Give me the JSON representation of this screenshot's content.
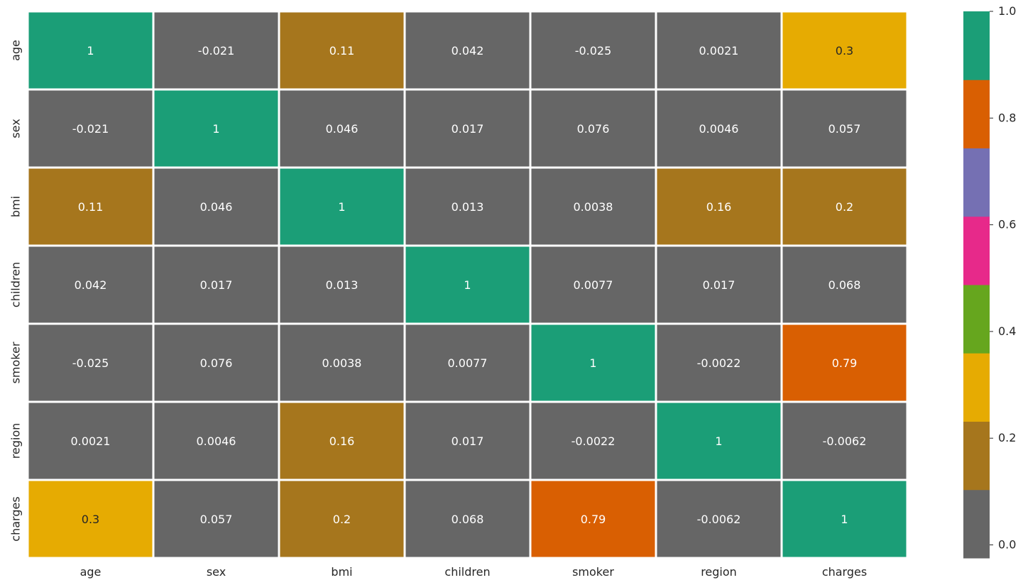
{
  "chart_data": {
    "type": "heatmap",
    "title": "",
    "xlabel": "",
    "ylabel": "",
    "x_categories": [
      "age",
      "sex",
      "bmi",
      "children",
      "smoker",
      "region",
      "charges"
    ],
    "y_categories": [
      "age",
      "sex",
      "bmi",
      "children",
      "smoker",
      "region",
      "charges"
    ],
    "values": [
      [
        1,
        -0.021,
        0.11,
        0.042,
        -0.025,
        0.0021,
        0.3
      ],
      [
        -0.021,
        1,
        0.046,
        0.017,
        0.076,
        0.0046,
        0.057
      ],
      [
        0.11,
        0.046,
        1,
        0.013,
        0.0038,
        0.16,
        0.2
      ],
      [
        0.042,
        0.017,
        0.013,
        1,
        0.0077,
        0.017,
        0.068
      ],
      [
        -0.025,
        0.076,
        0.0038,
        0.0077,
        1,
        -0.0022,
        0.79
      ],
      [
        0.0021,
        0.0046,
        0.16,
        0.017,
        -0.0022,
        1,
        -0.0062
      ],
      [
        0.3,
        0.057,
        0.2,
        0.068,
        0.79,
        -0.0062,
        1
      ]
    ],
    "labels": [
      [
        "1",
        "-0.021",
        "0.11",
        "0.042",
        "-0.025",
        "0.0021",
        "0.3"
      ],
      [
        "-0.021",
        "1",
        "0.046",
        "0.017",
        "0.076",
        "0.0046",
        "0.057"
      ],
      [
        "0.11",
        "0.046",
        "1",
        "0.013",
        "0.0038",
        "0.16",
        "0.2"
      ],
      [
        "0.042",
        "0.017",
        "0.013",
        "1",
        "0.0077",
        "0.017",
        "0.068"
      ],
      [
        "-0.025",
        "0.076",
        "0.0038",
        "0.0077",
        "1",
        "-0.0022",
        "0.79"
      ],
      [
        "0.0021",
        "0.0046",
        "0.16",
        "0.017",
        "-0.0022",
        "1",
        "-0.0062"
      ],
      [
        "0.3",
        "0.057",
        "0.2",
        "0.068",
        "0.79",
        "-0.0062",
        "1"
      ]
    ],
    "colorbar": {
      "vmin": -0.0246,
      "vmax": 1.0,
      "ticks": [
        0.0,
        0.2,
        0.4,
        0.6,
        0.8,
        1.0
      ],
      "tick_labels": [
        "0.0",
        "0.2",
        "0.4",
        "0.6",
        "0.8",
        "1.0"
      ],
      "palette": [
        "#666666",
        "#a6761d",
        "#e6ab02",
        "#66a61e",
        "#e7298a",
        "#7570b3",
        "#d95f02",
        "#1b9e77"
      ],
      "colormap": "Dark2_r",
      "position": "right"
    },
    "text_color_light": "#ffffff",
    "text_color_dark": "#262626",
    "grid_color": "#ffffff"
  }
}
